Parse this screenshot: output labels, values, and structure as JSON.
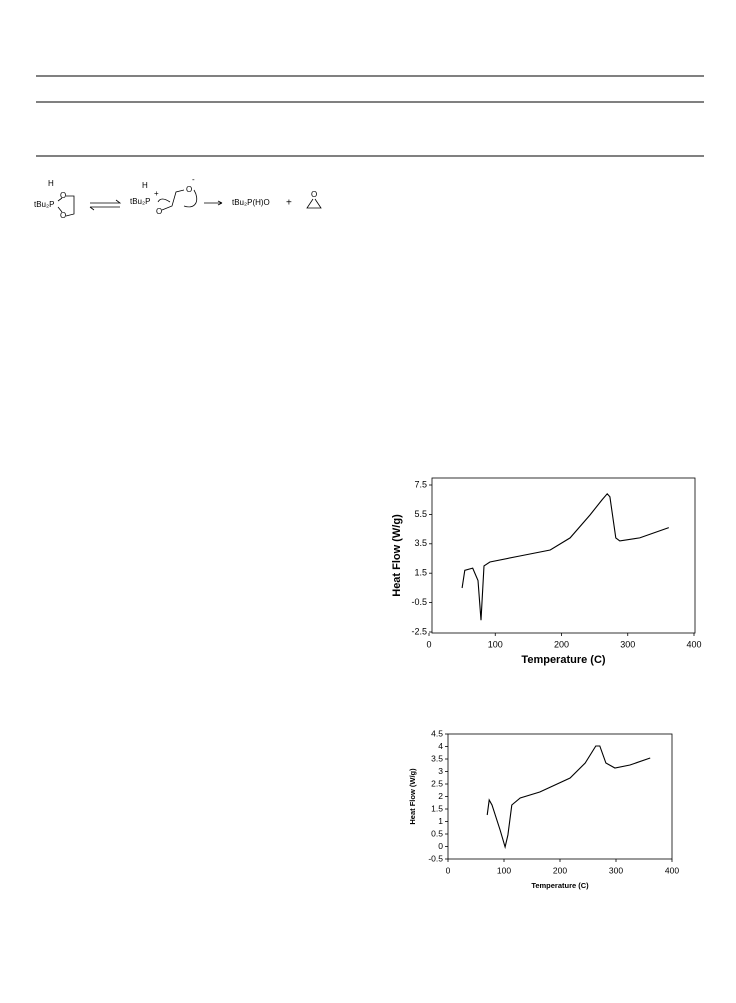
{
  "scheme": {
    "labels": [
      "H",
      "tBu₂P",
      "O",
      "O",
      "H",
      "tBu₂P",
      "+",
      "O",
      "O",
      "-",
      "tBu₂P(H)O",
      "+",
      "O"
    ]
  },
  "chart_data": [
    {
      "type": "line",
      "xlabel": "Temperature (C)",
      "ylabel": "Heat Flow (W/g)",
      "color": "#000000",
      "xlim": [
        0,
        400
      ],
      "xticks": [
        0,
        100,
        200,
        300,
        400
      ],
      "ylim": [
        -2.5,
        7.5
      ],
      "yticks": [
        -2.5,
        -0.5,
        1.5,
        3.5,
        5.5,
        7.5
      ],
      "x": [
        50,
        54,
        66,
        74,
        78.5,
        83,
        92,
        137,
        183,
        213,
        243,
        261,
        269,
        273,
        282,
        288,
        318,
        362
      ],
      "values": [
        0.49,
        1.7,
        1.85,
        1.0,
        -1.7,
        2.0,
        2.26,
        2.67,
        3.08,
        3.9,
        5.46,
        6.48,
        6.9,
        6.7,
        3.9,
        3.7,
        3.9,
        4.6
      ]
    },
    {
      "type": "line",
      "xlabel": "Temperature (C)",
      "ylabel": "Heat Flow (W/g)",
      "color": "#000000",
      "xlim": [
        0,
        400
      ],
      "xticks": [
        0,
        100,
        200,
        300,
        400
      ],
      "ylim": [
        -0.5,
        4.5
      ],
      "yticks": [
        -0.5,
        0,
        0.5,
        1,
        1.5,
        2,
        2.5,
        3,
        3.5,
        4,
        4.5
      ],
      "x": [
        70,
        73.6,
        78.6,
        93,
        102,
        107,
        114,
        129,
        164,
        218,
        245,
        264,
        271,
        282,
        298,
        325,
        361
      ],
      "values": [
        1.26,
        1.86,
        1.66,
        0.66,
        -0.02,
        0.46,
        1.66,
        1.94,
        2.18,
        2.74,
        3.34,
        4.02,
        4.02,
        3.34,
        3.14,
        3.26,
        3.54
      ]
    }
  ]
}
